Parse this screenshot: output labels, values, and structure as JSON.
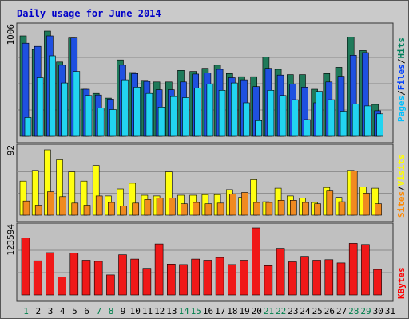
{
  "chart_data": {
    "type": "bar",
    "title": "Daily usage for June 2014",
    "days": [
      "1",
      "2",
      "3",
      "4",
      "5",
      "6",
      "7",
      "8",
      "9",
      "10",
      "11",
      "12",
      "13",
      "14",
      "15",
      "16",
      "17",
      "18",
      "19",
      "20",
      "21",
      "22",
      "23",
      "24",
      "25",
      "26",
      "27",
      "28",
      "29",
      "30",
      "31"
    ],
    "weekend_days": [
      "1",
      "7",
      "8",
      "14",
      "15",
      "21",
      "22",
      "28",
      "29"
    ],
    "panels": [
      {
        "name": "top",
        "max_label": "1006",
        "ymax": 1006,
        "legend": [
          {
            "text": "Pages",
            "color": "#00c0ff"
          },
          {
            "text": "Files",
            "color": "#0040ff"
          },
          {
            "text": "Hits",
            "color": "#00805c"
          }
        ],
        "separator": "/",
        "series": [
          {
            "name": "Hits",
            "color": "#1f7a5a",
            "values": [
              960,
              830,
              1006,
              710,
              940,
              450,
              410,
              365,
              730,
              610,
              535,
              520,
              520,
              630,
              620,
              650,
              680,
              600,
              570,
              570,
              760,
              640,
              590,
              590,
              450,
              600,
              660,
              950,
              820,
              305,
              null
            ]
          },
          {
            "name": "Files",
            "color": "#1f50e0",
            "values": [
              890,
              860,
              960,
              680,
              940,
              450,
              395,
              355,
              680,
              600,
              525,
              445,
              445,
              520,
              595,
              605,
              640,
              560,
              540,
              475,
              650,
              585,
              500,
              470,
              320,
              520,
              575,
              775,
              800,
              245,
              null
            ]
          },
          {
            "name": "Pages",
            "color": "#22d4f0",
            "values": [
              180,
              560,
              770,
              510,
              620,
              390,
              270,
              255,
              540,
              470,
              410,
              280,
              380,
              370,
              460,
              500,
              440,
              510,
              320,
              150,
              440,
              390,
              350,
              160,
              430,
              350,
              240,
              310,
              290,
              215,
              null
            ]
          }
        ]
      },
      {
        "name": "middle",
        "max_label": "92",
        "ymax": 92,
        "legend": [
          {
            "text": "Sites",
            "color": "#ff8800"
          },
          {
            "text": "Visits",
            "color": "#ffff00"
          }
        ],
        "separator": "/",
        "series": [
          {
            "name": "Visits",
            "color": "#ffff10",
            "values": [
              48,
              63,
              92,
              78,
              61,
              48,
              70,
              27,
              37,
              45,
              28,
              27,
              61,
              28,
              28,
              29,
              29,
              36,
              25,
              50,
              19,
              38,
              27,
              24,
              18,
              39,
              25,
              63,
              40,
              38,
              null
            ]
          },
          {
            "name": "Sites",
            "color": "#f08a20",
            "values": [
              20,
              14,
              33,
              26,
              17,
              14,
              27,
              18,
              13,
              17,
              22,
              24,
              24,
              16,
              18,
              16,
              17,
              30,
              32,
              18,
              18,
              21,
              21,
              18,
              16,
              34,
              19,
              62,
              31,
              16,
              null
            ]
          }
        ]
      },
      {
        "name": "bottom",
        "max_label": "123594",
        "ymax": 123594,
        "legend": [
          {
            "text": "KBytes",
            "color": "#ff0000"
          }
        ],
        "separator": "",
        "series": [
          {
            "name": "KBytes",
            "color": "#f01818",
            "values": [
              105000,
              63000,
              78000,
              33000,
              77000,
              64000,
              62000,
              37000,
              74000,
              66000,
              49000,
              94000,
              57000,
              56000,
              66000,
              64000,
              69000,
              56000,
              64000,
              123594,
              54000,
              86000,
              61000,
              71000,
              64000,
              65000,
              59000,
              95000,
              93000,
              47000,
              null
            ]
          }
        ]
      }
    ]
  }
}
